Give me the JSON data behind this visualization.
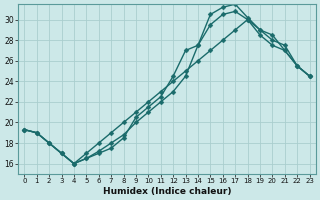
{
  "xlabel": "Humidex (Indice chaleur)",
  "ylabel": "",
  "bg_color": "#cce8e8",
  "grid_color": "#aacece",
  "line_color": "#1a6b6b",
  "xlim": [
    -0.5,
    23.5
  ],
  "ylim": [
    15.0,
    31.5
  ],
  "xticks": [
    0,
    1,
    2,
    3,
    4,
    5,
    6,
    7,
    8,
    9,
    10,
    11,
    12,
    13,
    14,
    15,
    16,
    17,
    18,
    19,
    20,
    21,
    22,
    23
  ],
  "yticks": [
    16,
    18,
    20,
    22,
    24,
    26,
    28,
    30
  ],
  "line1_x": [
    0,
    1,
    2,
    3,
    4,
    5,
    6,
    7,
    8,
    9,
    10,
    11,
    12,
    13,
    14,
    15,
    16,
    17,
    18,
    19,
    20,
    21,
    22,
    23
  ],
  "line1_y": [
    19.3,
    19.0,
    18.0,
    17.0,
    16.0,
    16.5,
    17.0,
    17.5,
    18.5,
    20.5,
    21.5,
    22.5,
    24.5,
    27.0,
    27.5,
    30.5,
    31.2,
    31.5,
    30.2,
    29.0,
    28.0,
    27.5,
    25.5,
    24.5
  ],
  "line2_x": [
    0,
    1,
    2,
    3,
    4,
    5,
    6,
    7,
    8,
    9,
    10,
    11,
    12,
    13,
    14,
    15,
    16,
    17,
    18,
    19,
    20,
    21,
    22,
    23
  ],
  "line2_y": [
    19.3,
    19.0,
    18.0,
    17.0,
    16.0,
    16.5,
    17.2,
    18.0,
    18.8,
    20.0,
    21.0,
    22.0,
    23.0,
    24.5,
    27.5,
    29.5,
    30.5,
    30.8,
    30.0,
    29.0,
    28.5,
    27.0,
    25.5,
    24.5
  ],
  "line3_x": [
    0,
    1,
    2,
    3,
    4,
    5,
    6,
    7,
    8,
    9,
    10,
    11,
    12,
    13,
    14,
    15,
    16,
    17,
    18,
    19,
    20,
    21,
    22,
    23
  ],
  "line3_y": [
    19.3,
    19.0,
    18.0,
    17.0,
    16.0,
    17.0,
    18.0,
    19.0,
    20.0,
    21.0,
    22.0,
    23.0,
    24.0,
    25.0,
    26.0,
    27.0,
    28.0,
    29.0,
    30.0,
    28.5,
    27.5,
    27.0,
    25.5,
    24.5
  ]
}
